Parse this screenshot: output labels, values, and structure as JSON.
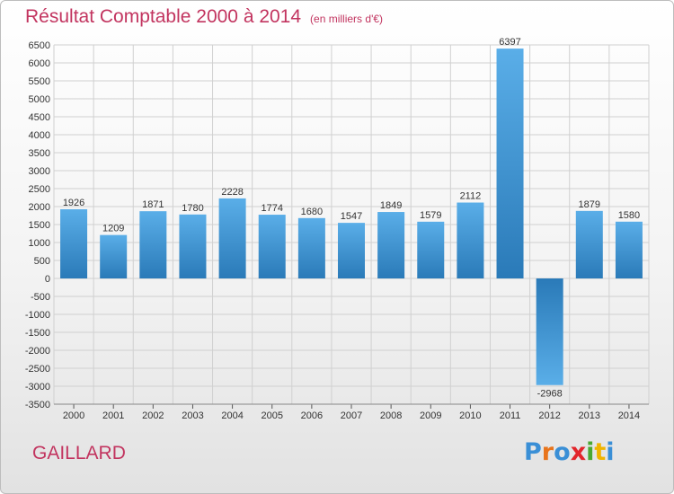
{
  "title": "Résultat Comptable 2000 à 2014",
  "subtitle": "(en milliers d'€)",
  "commune": "GAILLARD",
  "logo": {
    "text": "Proxiti",
    "letter_colors": [
      "#3a8fd6",
      "#e8741c",
      "#3a8fd6",
      "#e2252b",
      "#4aa832",
      "#f0b400",
      "#3a8fd6"
    ]
  },
  "colors": {
    "title": "#c2345f",
    "bar_top": "#5aaee8",
    "bar_bottom": "#2a7ab8",
    "grid": "#d0d0d0"
  },
  "chart_data": {
    "type": "bar",
    "title": "Résultat Comptable 2000 à 2014",
    "subtitle": "(en milliers d'€)",
    "xlabel": "",
    "ylabel": "",
    "categories": [
      "2000",
      "2001",
      "2002",
      "2003",
      "2004",
      "2005",
      "2006",
      "2007",
      "2008",
      "2009",
      "2010",
      "2011",
      "2012",
      "2013",
      "2014"
    ],
    "values": [
      1926,
      1209,
      1871,
      1780,
      2228,
      1774,
      1680,
      1547,
      1849,
      1579,
      2112,
      6397,
      -2968,
      1879,
      1580
    ],
    "ylim": [
      -3500,
      6500
    ],
    "yticks": [
      6500,
      6000,
      5500,
      5000,
      4500,
      4000,
      3500,
      3000,
      2500,
      2000,
      1500,
      1000,
      500,
      0,
      -500,
      -1000,
      -1500,
      -2000,
      -2500,
      -3000,
      -3500
    ],
    "grid": true,
    "data_labels": true
  }
}
